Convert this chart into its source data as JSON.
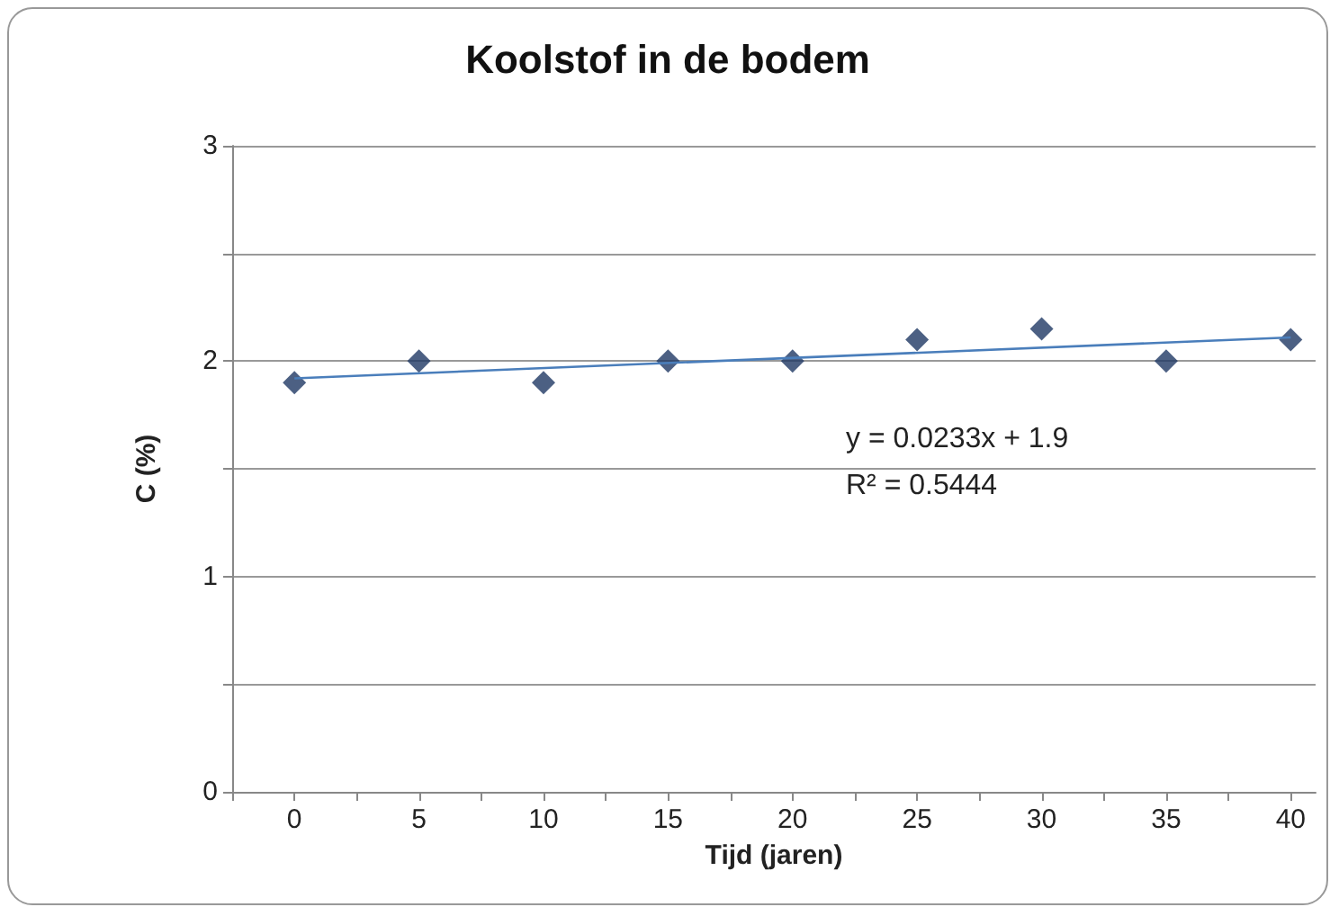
{
  "chart_data": {
    "type": "scatter",
    "title": "Koolstof in de bodem",
    "xlabel": "Tijd (jaren)",
    "ylabel": "C (%)",
    "x": [
      0,
      5,
      10,
      15,
      20,
      25,
      30,
      35,
      40
    ],
    "series": [
      {
        "color": "#1f3864",
        "marker": "diamond",
        "values": [
          1.9,
          2.0,
          1.9,
          2.0,
          2.0,
          2.1,
          2.15,
          2.0,
          2.1
        ]
      },
      {
        "type": "line",
        "color": "#4a7ebb",
        "marker": "none",
        "x": [
          0,
          40
        ],
        "values": [
          1.92,
          2.11
        ]
      }
    ],
    "xlim": [
      -2.5,
      41
    ],
    "xticks": [
      {
        "value": -2.5,
        "label": null
      },
      0,
      {
        "value": 2.5,
        "label": null
      },
      5,
      {
        "value": 7.5,
        "label": null
      },
      10,
      {
        "value": 12.5,
        "label": null
      },
      15,
      {
        "value": 17.5,
        "label": null
      },
      20,
      {
        "value": 22.5,
        "label": null
      },
      25,
      {
        "value": 27.5,
        "label": null
      },
      30,
      {
        "value": 32.5,
        "label": null
      },
      35,
      {
        "value": 37.5,
        "label": null
      },
      40
    ],
    "ylim": [
      0,
      3
    ],
    "yticks": [
      0,
      {
        "value": 0.5,
        "label": null
      },
      1,
      {
        "value": 1.5,
        "label": null
      },
      2,
      {
        "value": 2.5,
        "label": null
      },
      3
    ],
    "grid": "y",
    "annotations": [
      "y = 0.0233x + 1.9",
      "R² = 0.5444"
    ]
  }
}
